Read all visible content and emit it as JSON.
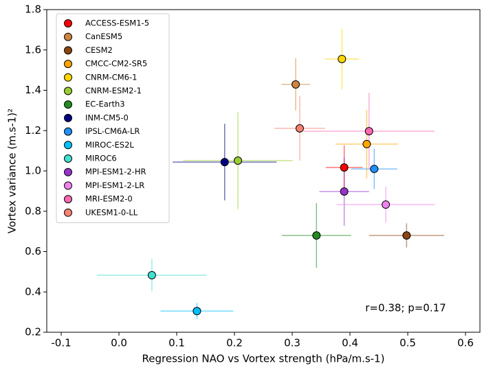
{
  "chart_data": {
    "type": "scatter",
    "xlabel": "Regression NAO vs Vortex strength (hPa/m.s-1)",
    "ylabel": "Vortex variance (m.s-1)²",
    "annotation": "r=0.38; p=0.17",
    "xlim": [
      -0.125,
      0.625
    ],
    "xticks": [
      -0.1,
      {
        "value": 0.0,
        "label": "0.0"
      },
      0.1,
      0.2,
      0.3,
      0.4,
      0.5,
      0.6
    ],
    "ylim": [
      0.2,
      1.8
    ],
    "yticks": [
      0.2,
      0.4,
      0.6,
      0.8,
      {
        "value": 1.0,
        "label": "1.0"
      },
      1.2,
      1.4,
      1.6,
      1.8
    ],
    "legend": "upper left",
    "series": [
      {
        "name": "ACCESS-ESM1-5",
        "color": "#ff0000",
        "x": [
          0.39
        ],
        "values": [
          1.017
        ],
        "xerr": [
          0.032
        ],
        "yerr": [
          0.11
        ]
      },
      {
        "name": "CanESM5",
        "color": "#cd853f",
        "x": [
          0.306
        ],
        "values": [
          1.429
        ],
        "xerr": [
          0.025
        ],
        "yerr": [
          0.13
        ]
      },
      {
        "name": "CESM2",
        "color": "#8b4513",
        "x": [
          0.498
        ],
        "values": [
          0.68
        ],
        "xerr": [
          0.065
        ],
        "yerr": [
          0.06
        ]
      },
      {
        "name": "CMCC-CM2-SR5",
        "color": "#ffa500",
        "x": [
          0.429
        ],
        "values": [
          1.133
        ],
        "xerr": [
          0.054
        ],
        "yerr": [
          0.17
        ]
      },
      {
        "name": "CNRM-CM6-1",
        "color": "#ffd700",
        "x": [
          0.386
        ],
        "values": [
          1.555
        ],
        "xerr": [
          0.03
        ],
        "yerr": [
          0.15
        ]
      },
      {
        "name": "CNRM-ESM2-1",
        "color": "#9acd32",
        "x": [
          0.206
        ],
        "values": [
          1.051
        ],
        "xerr": [
          0.095
        ],
        "yerr": [
          0.24
        ]
      },
      {
        "name": "EC-Earth3",
        "color": "#228b22",
        "x": [
          0.342
        ],
        "values": [
          0.68
        ],
        "xerr": [
          0.06
        ],
        "yerr": [
          0.16
        ]
      },
      {
        "name": "INM-CM5-0",
        "color": "#000080",
        "x": [
          0.183
        ],
        "values": [
          1.044
        ],
        "xerr": [
          0.09
        ],
        "yerr": [
          0.19
        ]
      },
      {
        "name": "IPSL-CM6A-LR",
        "color": "#1e90ff",
        "x": [
          0.442
        ],
        "values": [
          1.01
        ],
        "xerr": [
          0.04
        ],
        "yerr": [
          0.1
        ]
      },
      {
        "name": "MIROC-ES2L",
        "color": "#00bfff",
        "x": [
          0.135
        ],
        "values": [
          0.305
        ],
        "xerr": [
          0.063
        ],
        "yerr": [
          0.04
        ]
      },
      {
        "name": "MIROC6",
        "color": "#40e0d0",
        "x": [
          0.057
        ],
        "values": [
          0.483
        ],
        "xerr": [
          0.095
        ],
        "yerr": [
          0.08
        ]
      },
      {
        "name": "MPI-ESM1-2-HR",
        "color": "#9932cc",
        "x": [
          0.39
        ],
        "values": [
          0.898
        ],
        "xerr": [
          0.043
        ],
        "yerr": [
          0.17
        ]
      },
      {
        "name": "MPI-ESM1-2-LR",
        "color": "#ee82ee",
        "x": [
          0.462
        ],
        "values": [
          0.833
        ],
        "xerr": [
          0.085
        ],
        "yerr": [
          0.09
        ]
      },
      {
        "name": "MRI-ESM2-0",
        "color": "#ff69b4",
        "x": [
          0.433
        ],
        "values": [
          1.197
        ],
        "xerr": [
          0.113
        ],
        "yerr": [
          0.19
        ]
      },
      {
        "name": "UKESM1-0-LL",
        "color": "#fa8072",
        "x": [
          0.313
        ],
        "values": [
          1.211
        ],
        "xerr": [
          0.044
        ],
        "yerr": [
          0.16
        ]
      }
    ]
  }
}
